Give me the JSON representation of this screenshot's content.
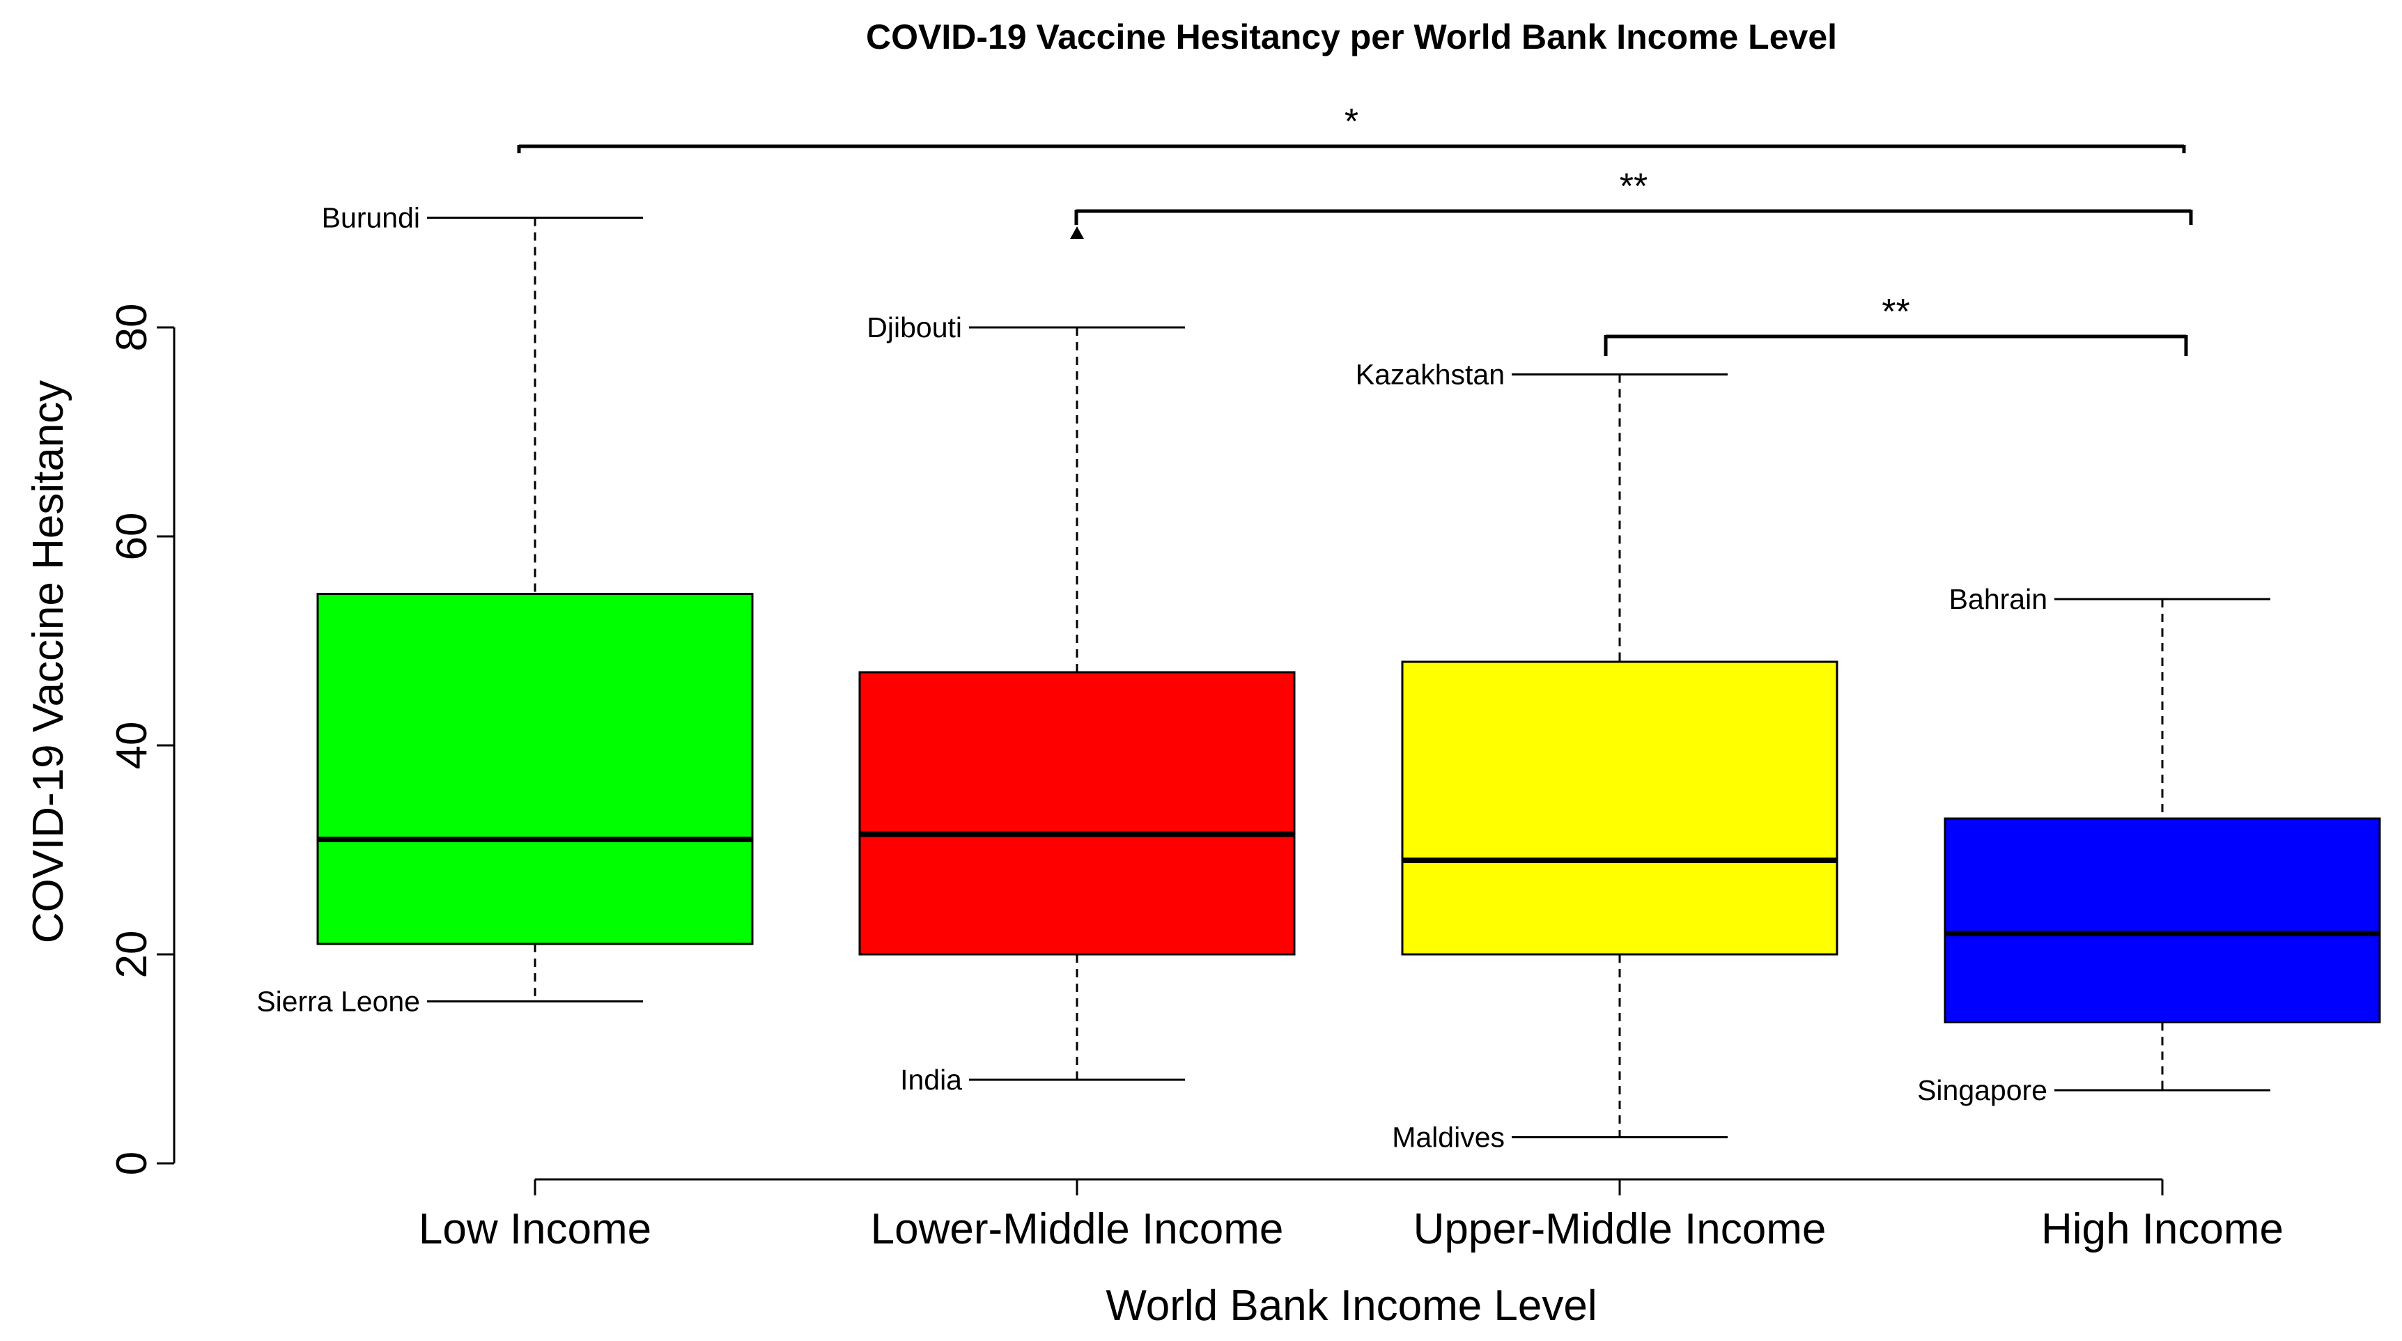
{
  "chart_data": {
    "type": "boxplot",
    "title": "COVID-19 Vaccine Hesitancy per World Bank Income Level",
    "xlabel": "World Bank Income Level",
    "ylabel": "COVID-19 Vaccine Hesitancy",
    "ylim": [
      0,
      90
    ],
    "yticks": [
      0,
      20,
      40,
      60,
      80
    ],
    "grid": false,
    "legend": "none",
    "series": [
      {
        "category": "Low Income",
        "color": "#00ff00",
        "min": 15.5,
        "q1": 21,
        "median": 31,
        "q3": 54.5,
        "max": 90.5,
        "max_label": "Burundi",
        "min_label": "Sierra Leone",
        "outliers": []
      },
      {
        "category": "Lower-Middle Income",
        "color": "#ff0000",
        "min": 8,
        "q1": 20,
        "median": 31.5,
        "q3": 47,
        "max": 80,
        "max_label": "Djibouti",
        "min_label": "India",
        "outliers": [
          89
        ]
      },
      {
        "category": "Upper-Middle Income",
        "color": "#ffff00",
        "min": 2.5,
        "q1": 20,
        "median": 29,
        "q3": 48,
        "max": 75.5,
        "max_label": "Kazakhstan",
        "min_label": "Maldives",
        "outliers": []
      },
      {
        "category": "High Income",
        "color": "#0000ff",
        "min": 7,
        "q1": 13.5,
        "median": 22,
        "q3": 33,
        "max": 54,
        "max_label": "Bahrain",
        "min_label": "Singapore",
        "outliers": []
      }
    ],
    "significance": [
      {
        "from": 0,
        "to": 3,
        "label": "*"
      },
      {
        "from": 1,
        "to": 3,
        "label": "**"
      },
      {
        "from": 2,
        "to": 3,
        "label": "**"
      }
    ]
  }
}
